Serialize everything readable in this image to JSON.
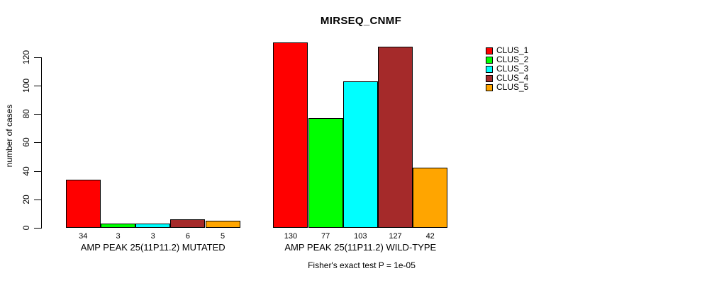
{
  "chart_data": {
    "type": "bar",
    "title": "MIRSEQ_CNMF",
    "ylabel": "number of cases",
    "xlabel": "",
    "ylim": [
      0,
      130
    ],
    "yticks": [
      0,
      20,
      40,
      60,
      80,
      100,
      120
    ],
    "grid": false,
    "legend_position": "right",
    "bar_value_labels": true,
    "categories": [
      "AMP PEAK 25(11P11.2) MUTATED",
      "AMP PEAK 25(11P11.2) WILD-TYPE"
    ],
    "series": [
      {
        "name": "CLUS_1",
        "color": "#FF0000",
        "values": [
          34,
          130
        ]
      },
      {
        "name": "CLUS_2",
        "color": "#00FF00",
        "values": [
          3,
          77
        ]
      },
      {
        "name": "CLUS_3",
        "color": "#00FFFF",
        "values": [
          3,
          103
        ]
      },
      {
        "name": "CLUS_4",
        "color": "#A52A2A",
        "values": [
          6,
          127
        ]
      },
      {
        "name": "CLUS_5",
        "color": "#FFA500",
        "values": [
          5,
          42
        ]
      }
    ],
    "annotation": "Fisher's exact test P = 1e-05"
  },
  "colors": {
    "background": "#FFFFFF",
    "axis": "#000000",
    "text": "#000000",
    "bar_border": "#000000"
  }
}
